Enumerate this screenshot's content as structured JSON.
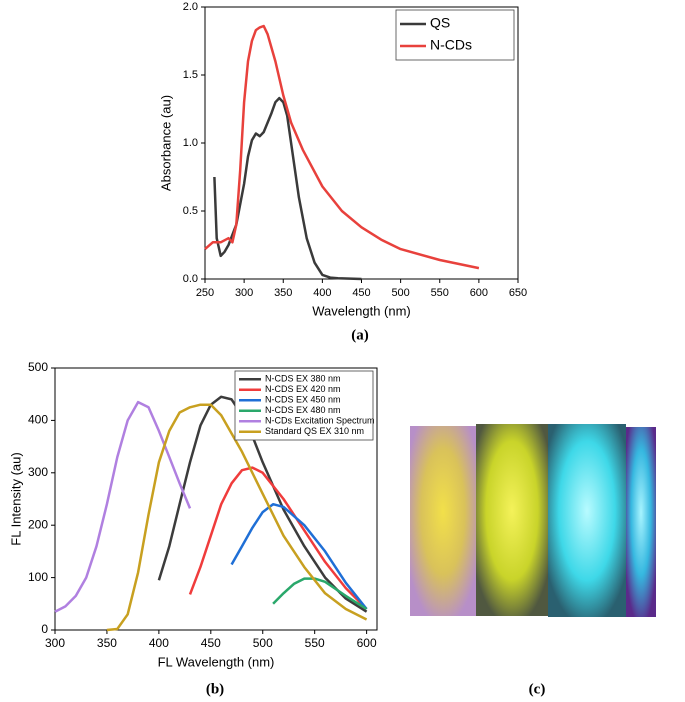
{
  "chart_data": [
    {
      "type": "line",
      "panel_label": "(a)",
      "xlabel": "Wavelength (nm)",
      "ylabel": "Absorbance (au)",
      "xlim": [
        250,
        650
      ],
      "xticks": [
        250,
        300,
        350,
        400,
        450,
        500,
        550,
        600,
        650
      ],
      "ylim": [
        0,
        2
      ],
      "yticks": [
        {
          "value": 0,
          "label": "0.0"
        },
        0.5,
        {
          "value": 1,
          "label": "1.0"
        },
        1.5,
        {
          "value": 2,
          "label": "2.0"
        }
      ],
      "legend": "top-right",
      "series": [
        {
          "name": "QS",
          "color": "#3a3a3a",
          "x": [
            262,
            265,
            270,
            275,
            280,
            290,
            300,
            305,
            310,
            315,
            320,
            325,
            330,
            335,
            340,
            345,
            350,
            355,
            360,
            365,
            370,
            380,
            390,
            400,
            410,
            420,
            450
          ],
          "values": [
            0.75,
            0.3,
            0.17,
            0.2,
            0.25,
            0.4,
            0.7,
            0.9,
            1.02,
            1.07,
            1.05,
            1.08,
            1.15,
            1.22,
            1.3,
            1.33,
            1.3,
            1.2,
            1.0,
            0.8,
            0.6,
            0.3,
            0.12,
            0.03,
            0.01,
            0.005,
            0
          ]
        },
        {
          "name": "N-CDs",
          "color": "#e8413c",
          "x": [
            250,
            260,
            270,
            280,
            285,
            290,
            295,
            300,
            305,
            310,
            315,
            320,
            325,
            330,
            340,
            350,
            360,
            375,
            400,
            425,
            450,
            475,
            500,
            550,
            600
          ],
          "values": [
            0.22,
            0.27,
            0.27,
            0.3,
            0.27,
            0.4,
            0.8,
            1.3,
            1.6,
            1.75,
            1.83,
            1.85,
            1.86,
            1.8,
            1.6,
            1.35,
            1.15,
            0.95,
            0.68,
            0.5,
            0.38,
            0.29,
            0.22,
            0.14,
            0.08
          ]
        }
      ]
    },
    {
      "type": "line",
      "panel_label": "(b)",
      "xlabel": "FL Wavelength (nm)",
      "ylabel": "FL Intensity (au)",
      "xlim": [
        300,
        610
      ],
      "xticks": [
        300,
        350,
        400,
        450,
        500,
        550,
        600
      ],
      "ylim": [
        0,
        500
      ],
      "yticks": [
        0,
        100,
        200,
        300,
        400,
        500
      ],
      "legend": "top-right",
      "series": [
        {
          "name": "N-CDS EX 380 nm",
          "color": "#3c3c3c",
          "x": [
            400,
            410,
            420,
            430,
            440,
            450,
            460,
            470,
            480,
            490,
            500,
            520,
            540,
            560,
            580,
            600
          ],
          "values": [
            95,
            160,
            240,
            320,
            390,
            430,
            445,
            440,
            410,
            370,
            320,
            230,
            160,
            100,
            60,
            35
          ]
        },
        {
          "name": "N-CDS EX 420 nm",
          "color": "#f03c3c",
          "x": [
            430,
            440,
            450,
            460,
            470,
            480,
            490,
            500,
            520,
            540,
            560,
            580,
            600
          ],
          "values": [
            68,
            120,
            180,
            240,
            280,
            305,
            310,
            300,
            250,
            190,
            130,
            80,
            40
          ]
        },
        {
          "name": "N-CDS EX 450 nm",
          "color": "#1f6fd6",
          "x": [
            470,
            480,
            490,
            500,
            510,
            520,
            540,
            560,
            580,
            600
          ],
          "values": [
            125,
            160,
            195,
            225,
            240,
            235,
            200,
            150,
            90,
            40
          ]
        },
        {
          "name": "N-CDS EX 480 nm",
          "color": "#2aa86b",
          "x": [
            510,
            520,
            530,
            540,
            550,
            560,
            580,
            600
          ],
          "values": [
            50,
            70,
            88,
            98,
            98,
            92,
            65,
            40
          ]
        },
        {
          "name": "N-CDs Excitation Spectrum",
          "color": "#b080e0",
          "x": [
            300,
            310,
            320,
            330,
            340,
            350,
            360,
            370,
            380,
            390,
            400,
            410,
            420,
            430
          ],
          "values": [
            35,
            45,
            65,
            100,
            160,
            240,
            330,
            400,
            435,
            425,
            380,
            330,
            280,
            232
          ]
        },
        {
          "name": "Standard QS EX 310 nm",
          "color": "#c8a020",
          "x": [
            350,
            360,
            370,
            380,
            390,
            400,
            410,
            420,
            430,
            440,
            450,
            460,
            480,
            500,
            520,
            540,
            560,
            580,
            600
          ],
          "values": [
            0,
            2,
            30,
            110,
            220,
            320,
            380,
            415,
            425,
            430,
            430,
            410,
            340,
            260,
            180,
            120,
            70,
            40,
            20
          ]
        }
      ]
    }
  ],
  "photo_panel": {
    "label": "(c)"
  }
}
